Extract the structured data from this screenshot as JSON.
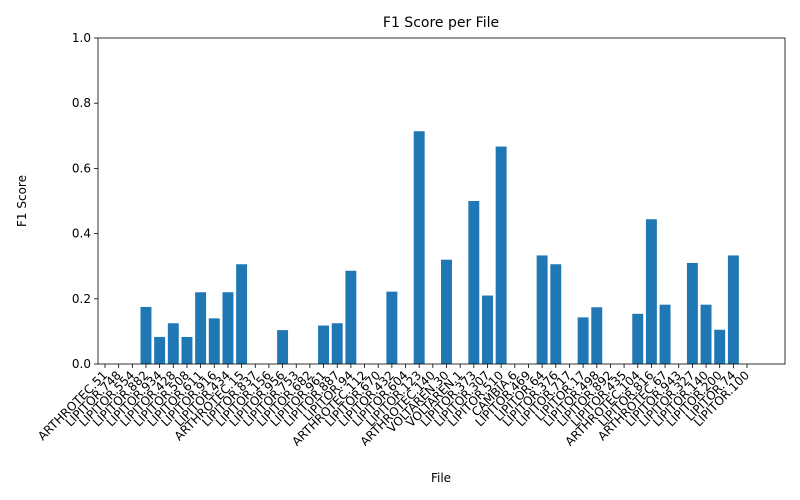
{
  "chart_data": {
    "type": "bar",
    "title": "F1 Score per File",
    "x_label": "File",
    "y_label": "F1 Score",
    "categories": [
      "ARTHROTEC.51",
      "LIPITOR.748",
      "LIPITOR.554",
      "LIPITOR.882",
      "LIPITOR.934",
      "LIPITOR.428",
      "LIPITOR.508",
      "LIPITOR.611",
      "LIPITOR.916",
      "LIPITOR.434",
      "ARTHROTEC.15",
      "LIPITOR.837",
      "LIPITOR.156",
      "LIPITOR.956",
      "LIPITOR.753",
      "LIPITOR.682",
      "LIPITOR.961",
      "LIPITOR.887",
      "LIPITOR.94",
      "ARTHROTEC.112",
      "LIPITOR.670",
      "LIPITOR.432",
      "LIPITOR.604",
      "LIPITOR.123",
      "ARTHROTEC.140",
      "VOLTAREN.30",
      "VOLTAREN.1",
      "LIPITOR.373",
      "LIPITOR.307",
      "LIPITOR.510",
      "CAMBIA.6",
      "LIPITOR.469",
      "LIPITOR.64",
      "LIPITOR.376",
      "LIPITOR.717",
      "LIPITOR.17",
      "LIPITOR.498",
      "LIPITOR.892",
      "LIPITOR.435",
      "ARTHROTEC.104",
      "LIPITOR.816",
      "ARTHROTEC.67",
      "LIPITOR.943",
      "LIPITOR.327",
      "LIPITOR.140",
      "LIPITOR.200",
      "LIPITOR.74",
      "LIPITOR.100"
    ],
    "values": [
      0,
      0,
      0,
      0.175,
      0.083,
      0.125,
      0.083,
      0.22,
      0.14,
      0.22,
      0.306,
      0,
      0,
      0.104,
      0,
      0,
      0.118,
      0.125,
      0.286,
      0,
      0,
      0.222,
      0,
      0.714,
      0,
      0.32,
      0,
      0.5,
      0.21,
      0.667,
      0,
      0,
      0.333,
      0.306,
      0,
      0.143,
      0.174,
      0,
      0,
      0.154,
      0.444,
      0.182,
      0,
      0.31,
      0.182,
      0.105,
      0.333,
      0
    ],
    "color": "#1f77b4",
    "ylim": [
      0,
      1
    ],
    "yticks": [
      {
        "value": 0,
        "label": "0.0"
      },
      {
        "value": 0.2,
        "label": "0.2"
      },
      {
        "value": 0.4,
        "label": "0.4"
      },
      {
        "value": 0.6,
        "label": "0.6"
      },
      {
        "value": 0.8,
        "label": "0.8"
      },
      {
        "value": 1,
        "label": "1.0"
      }
    ],
    "grid": false
  }
}
